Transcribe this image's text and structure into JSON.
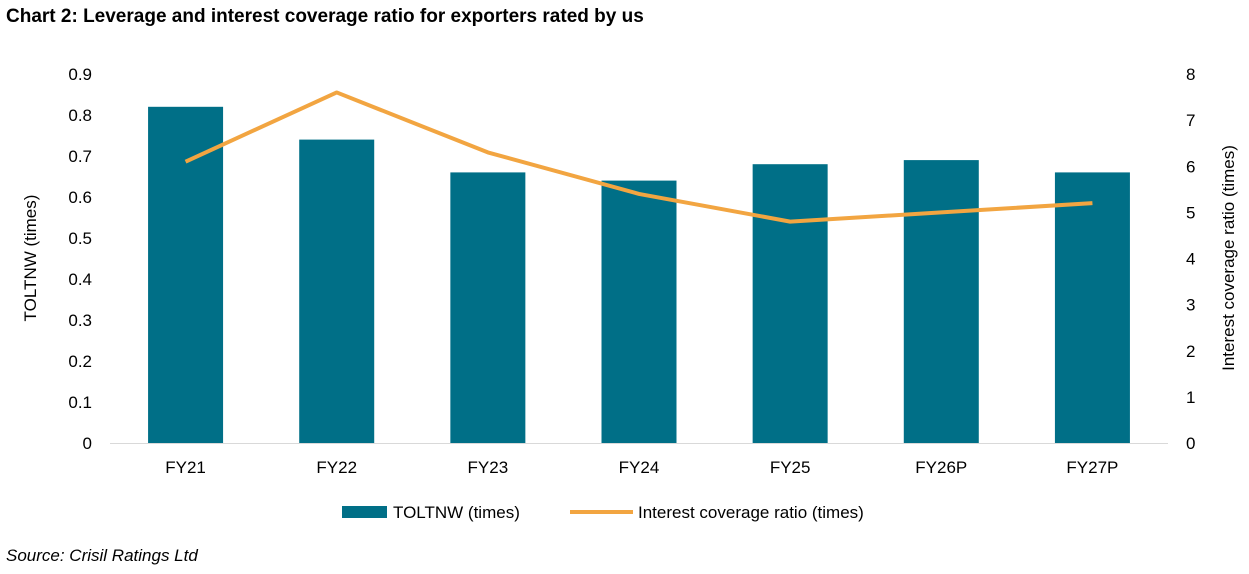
{
  "title": "Chart 2: Leverage and interest coverage ratio for exporters rated by us",
  "source": "Source: Crisil Ratings Ltd",
  "chart_data": {
    "type": "bar+line",
    "categories": [
      "FY21",
      "FY22",
      "FY23",
      "FY24",
      "FY25",
      "FY26P",
      "FY27P"
    ],
    "series": [
      {
        "name": "TOLTNW (times)",
        "type": "bar",
        "axis": "left",
        "color": "#006F87",
        "values": [
          0.82,
          0.74,
          0.66,
          0.64,
          0.68,
          0.69,
          0.66
        ]
      },
      {
        "name": "Interest coverage ratio (times)",
        "type": "line",
        "axis": "right",
        "color": "#F2A541",
        "values": [
          6.1,
          7.6,
          6.3,
          5.4,
          4.8,
          5.0,
          5.2
        ]
      }
    ],
    "ylabel": "TOLTNW (times)",
    "y2label": "Interest coverage ratio (times)",
    "ylim": [
      0,
      0.9
    ],
    "yticks": [
      "0",
      "0.1",
      "0.2",
      "0.3",
      "0.4",
      "0.5",
      "0.6",
      "0.7",
      "0.8",
      "0.9"
    ],
    "y2lim": [
      0,
      8
    ],
    "y2ticks": [
      "0",
      "1",
      "2",
      "3",
      "4",
      "5",
      "6",
      "7",
      "8"
    ],
    "grid": false,
    "legend": "bottom"
  }
}
